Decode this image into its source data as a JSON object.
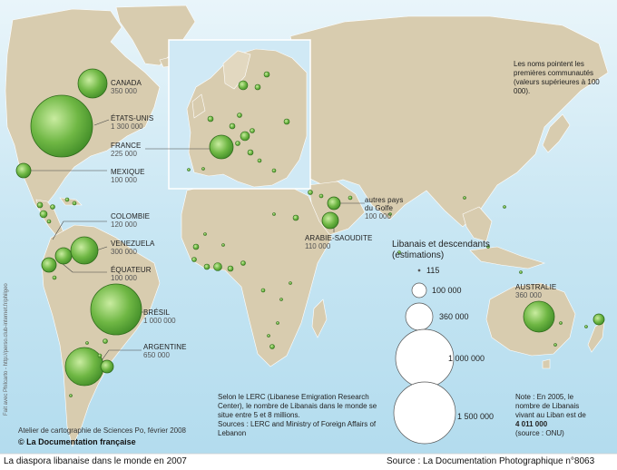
{
  "intro_note": "Les noms pointent les premières communautés (valeurs supérieures à 100 000).",
  "communities": [
    {
      "id": "canada",
      "name": "CANADA",
      "value": "350 000"
    },
    {
      "id": "usa",
      "name": "ÉTATS-UNIS",
      "value": "1 300 000"
    },
    {
      "id": "france",
      "name": "FRANCE",
      "value": "225 000"
    },
    {
      "id": "mexique",
      "name": "MEXIQUE",
      "value": "100 000"
    },
    {
      "id": "colombie",
      "name": "COLOMBIE",
      "value": "120 000"
    },
    {
      "id": "venezuela",
      "name": "VENEZUELA",
      "value": "300 000"
    },
    {
      "id": "equateur",
      "name": "ÉQUATEUR",
      "value": "100 000"
    },
    {
      "id": "bresil",
      "name": "BRÉSIL",
      "value": "1 000 000"
    },
    {
      "id": "argentine",
      "name": "ARGENTINE",
      "value": "650 000"
    },
    {
      "id": "golfe",
      "name": "autres pays du Golfe",
      "value": "100 000"
    },
    {
      "id": "arabie",
      "name": "ARABIE-SAOUDITE",
      "value": "110 000"
    },
    {
      "id": "australie",
      "name": "AUSTRALIE",
      "value": "360 000"
    }
  ],
  "legend": {
    "title": "Libanais et descendants (estimations)",
    "items": [
      "115",
      "100 000",
      "360 000",
      "1 000 000",
      "1 500 000"
    ]
  },
  "note_lerc": "Selon le LERC (Libanese Emigration Research Center), le nombre de Libanais dans le monde se situe entre 5 et 8 millions.",
  "sources": "Sources : LERC and Ministry of Foreign Affairs of Lebanon",
  "note_liban": {
    "prefix": "Note : En 2005, le nombre de Libanais vivant au Liban est de",
    "value": "4 011 000",
    "suffix": "(source : ONU)"
  },
  "atelier": "Atelier de cartographie de Sciences Po, février 2008",
  "copyright": "© La Documentation française",
  "footer_title": "La diaspora libanaise dans le monde en 2007",
  "footer_source": "Source : La Documentation Photographique n°8063",
  "side_credit": "Fait avec Philcarto - http://perso.club-internet.fr/philgeo",
  "colors": {
    "ocean": "#c9e6f2",
    "land": "#d8ccaf",
    "land_stroke": "#ffffff",
    "bubble": "#5fa83a",
    "bubble_light": "#b9e08c"
  }
}
